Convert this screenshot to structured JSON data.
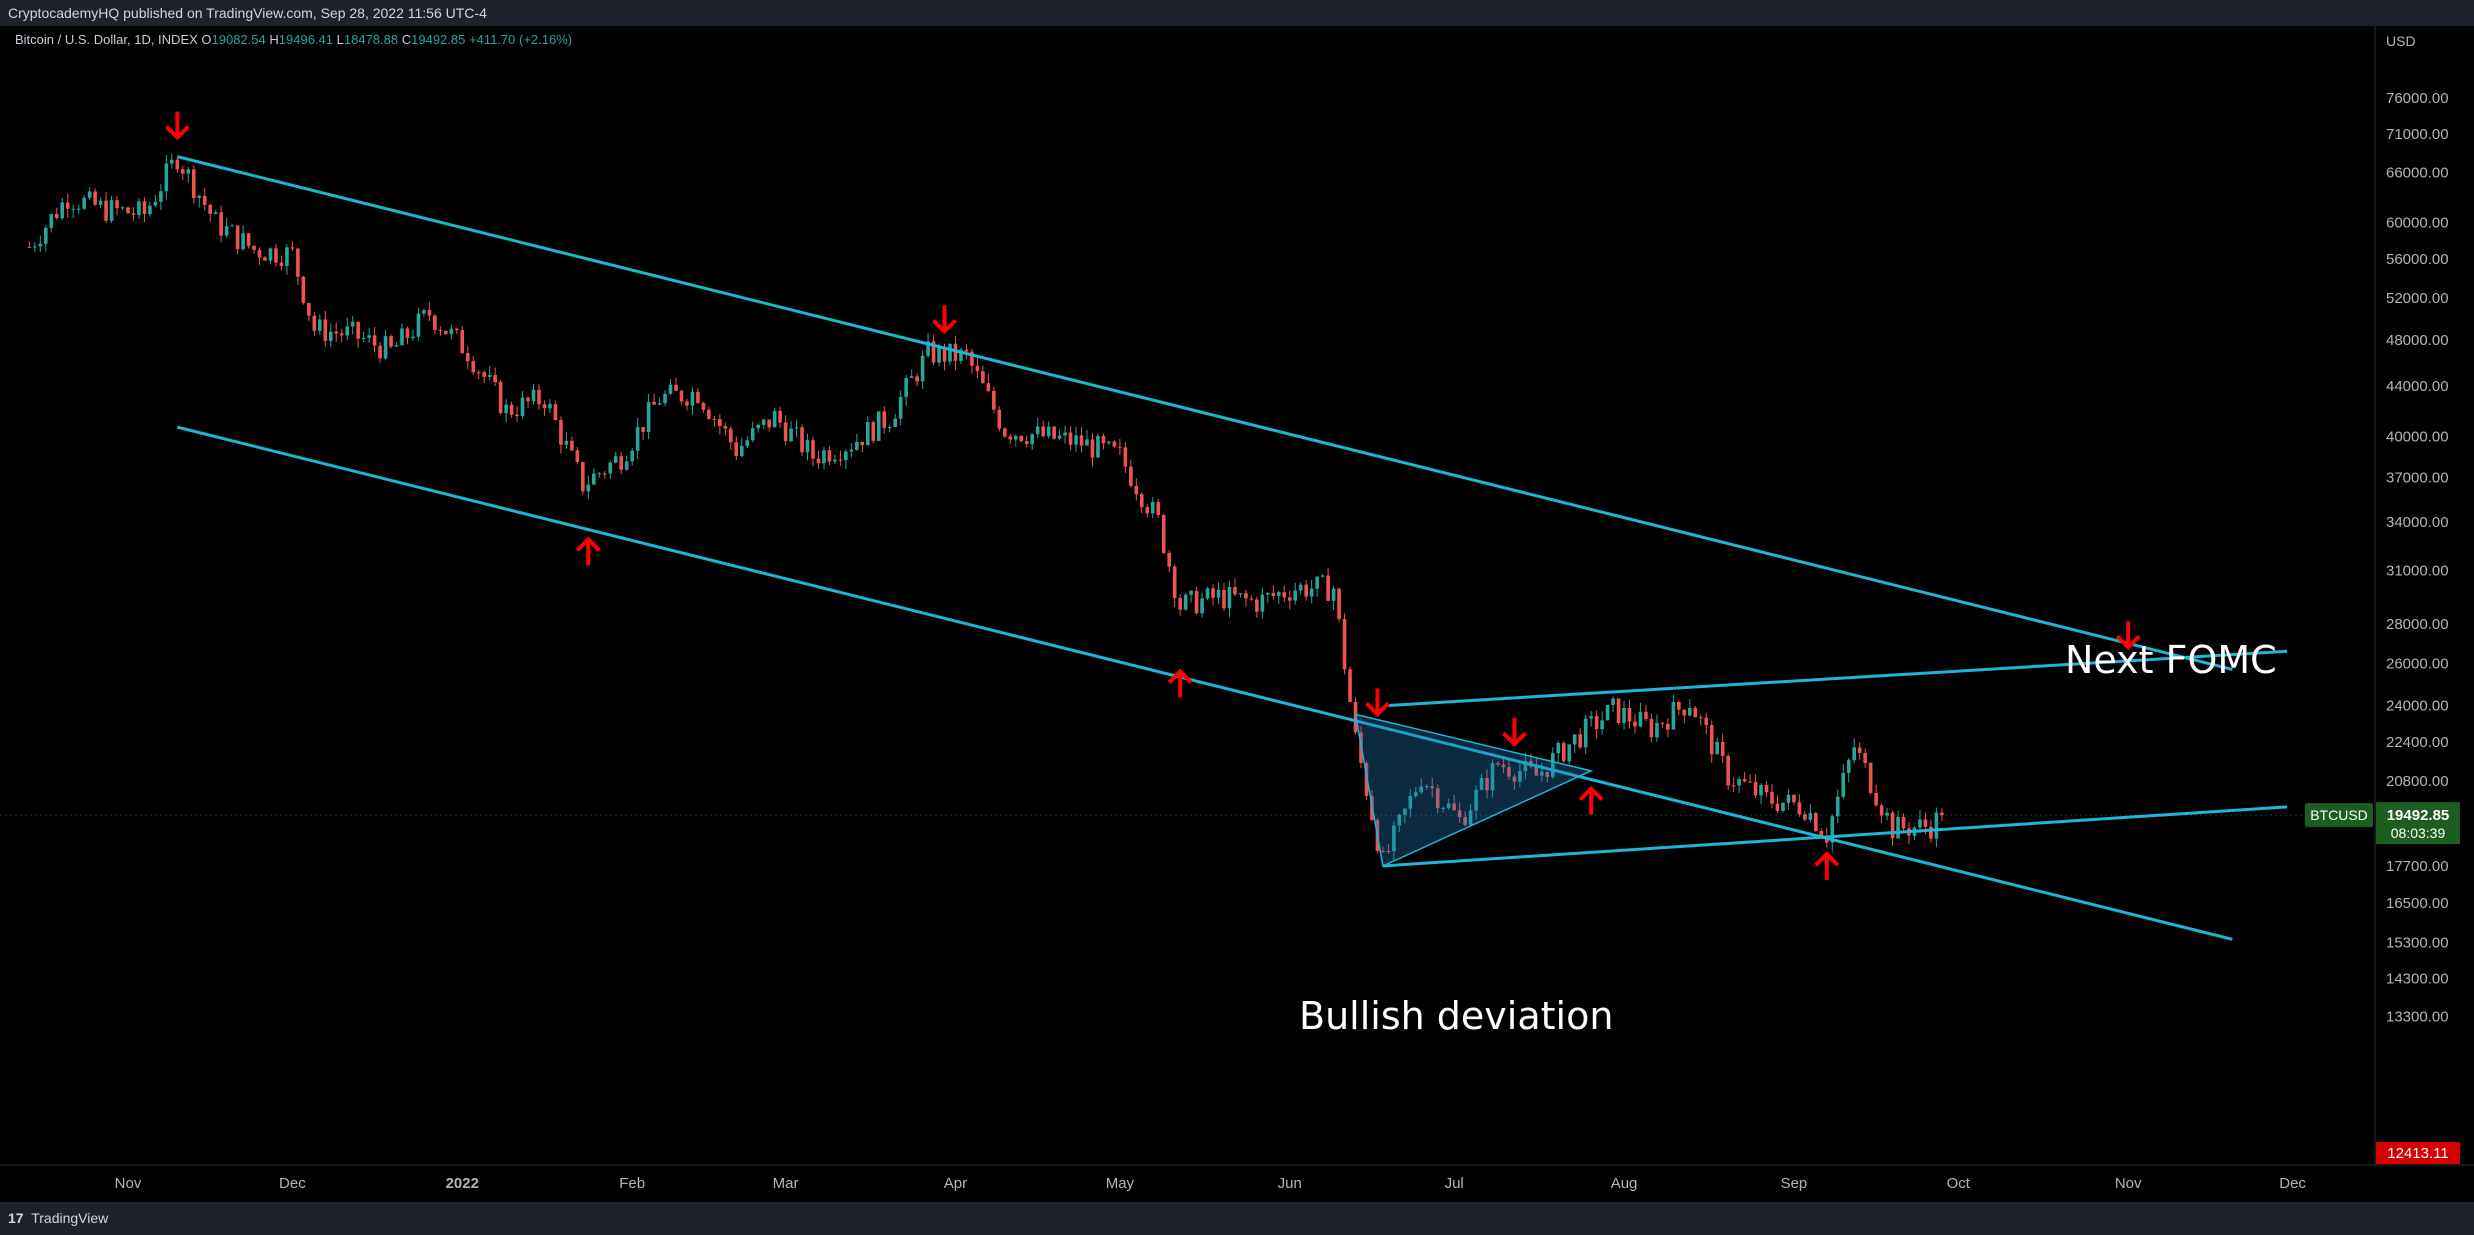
{
  "header": {
    "publisher": "CryptocademyHQ published on TradingView.com, Sep 28, 2022 11:56 UTC-4"
  },
  "legend": {
    "symbol": "Bitcoin / U.S. Dollar, 1D, INDEX",
    "open_label": "O",
    "open": "19082.54",
    "high_label": "H",
    "high": "19496.41",
    "low_label": "L",
    "low": "18478.88",
    "close_label": "C",
    "close": "19492.85",
    "change": "+411.70 (+2.16%)"
  },
  "footer": {
    "brand": "TradingView"
  },
  "colors": {
    "up": "#26a69a",
    "down": "#ef5350",
    "trendline": "#1fb5d6",
    "arrow": "#ff0000",
    "price_badge": "#1b5e20",
    "low_badge": "#d50000"
  },
  "chart_data": {
    "type": "candlestick",
    "title": "Bitcoin / U.S. Dollar, 1D, INDEX",
    "currency_label": "USD",
    "y_scale": "log",
    "y_ticks": [
      "76000.00",
      "71000.00",
      "66000.00",
      "60000.00",
      "56000.00",
      "52000.00",
      "48000.00",
      "44000.00",
      "40000.00",
      "37000.00",
      "34000.00",
      "31000.00",
      "28000.00",
      "26000.00",
      "24000.00",
      "22400.00",
      "20800.00",
      "17700.00",
      "16500.00",
      "15300.00",
      "14300.00",
      "13300.00"
    ],
    "x_ticks": [
      "Nov",
      "Dec",
      "2022",
      "Feb",
      "Mar",
      "Apr",
      "May",
      "Jun",
      "Jul",
      "Aug",
      "Sep",
      "Oct",
      "Nov",
      "Dec"
    ],
    "current_price": {
      "symbol": "BTCUSD",
      "value": "19492.85",
      "countdown": "08:03:39"
    },
    "low_marker": "12413.11",
    "annotations": [
      "Next FOMC",
      "Bullish deviation"
    ],
    "candles": [
      {
        "date": "2021-10-14",
        "close": 57300
      },
      {
        "date": "2021-10-21",
        "close": 63000
      },
      {
        "date": "2021-10-28",
        "close": 61500
      },
      {
        "date": "2021-11-04",
        "close": 61000
      },
      {
        "date": "2021-11-10",
        "close": 68000
      },
      {
        "date": "2021-11-17",
        "close": 60000
      },
      {
        "date": "2021-11-24",
        "close": 57000
      },
      {
        "date": "2021-12-01",
        "close": 56500
      },
      {
        "date": "2021-12-05",
        "close": 49000
      },
      {
        "date": "2021-12-12",
        "close": 48500
      },
      {
        "date": "2021-12-19",
        "close": 47000
      },
      {
        "date": "2021-12-26",
        "close": 50500
      },
      {
        "date": "2022-01-02",
        "close": 47000
      },
      {
        "date": "2022-01-09",
        "close": 42000
      },
      {
        "date": "2022-01-16",
        "close": 43000
      },
      {
        "date": "2022-01-23",
        "close": 36500
      },
      {
        "date": "2022-01-30",
        "close": 38500
      },
      {
        "date": "2022-02-06",
        "close": 43000
      },
      {
        "date": "2022-02-13",
        "close": 43500
      },
      {
        "date": "2022-02-20",
        "close": 39000
      },
      {
        "date": "2022-02-27",
        "close": 41500
      },
      {
        "date": "2022-03-06",
        "close": 38500
      },
      {
        "date": "2022-03-13",
        "close": 39500
      },
      {
        "date": "2022-03-20",
        "close": 41500
      },
      {
        "date": "2022-03-27",
        "close": 46800
      },
      {
        "date": "2022-04-03",
        "close": 46500
      },
      {
        "date": "2022-04-10",
        "close": 40500
      },
      {
        "date": "2022-04-17",
        "close": 40000
      },
      {
        "date": "2022-04-24",
        "close": 39500
      },
      {
        "date": "2022-05-01",
        "close": 38500
      },
      {
        "date": "2022-05-08",
        "close": 34000
      },
      {
        "date": "2022-05-12",
        "close": 29000
      },
      {
        "date": "2022-05-19",
        "close": 29500
      },
      {
        "date": "2022-05-26",
        "close": 29200
      },
      {
        "date": "2022-06-02",
        "close": 30000
      },
      {
        "date": "2022-06-09",
        "close": 30000
      },
      {
        "date": "2022-06-13",
        "close": 22500
      },
      {
        "date": "2022-06-18",
        "close": 17800
      },
      {
        "date": "2022-06-25",
        "close": 21000
      },
      {
        "date": "2022-07-02",
        "close": 19300
      },
      {
        "date": "2022-07-09",
        "close": 21500
      },
      {
        "date": "2022-07-16",
        "close": 21000
      },
      {
        "date": "2022-07-23",
        "close": 22500
      },
      {
        "date": "2022-07-30",
        "close": 23800
      },
      {
        "date": "2022-08-06",
        "close": 23000
      },
      {
        "date": "2022-08-13",
        "close": 24200
      },
      {
        "date": "2022-08-20",
        "close": 21000
      },
      {
        "date": "2022-08-27",
        "close": 20100
      },
      {
        "date": "2022-09-03",
        "close": 19800
      },
      {
        "date": "2022-09-07",
        "close": 18800
      },
      {
        "date": "2022-09-12",
        "close": 22200
      },
      {
        "date": "2022-09-19",
        "close": 19000
      },
      {
        "date": "2022-09-26",
        "close": 19100
      },
      {
        "date": "2022-09-28",
        "close": 19492.85
      }
    ]
  }
}
